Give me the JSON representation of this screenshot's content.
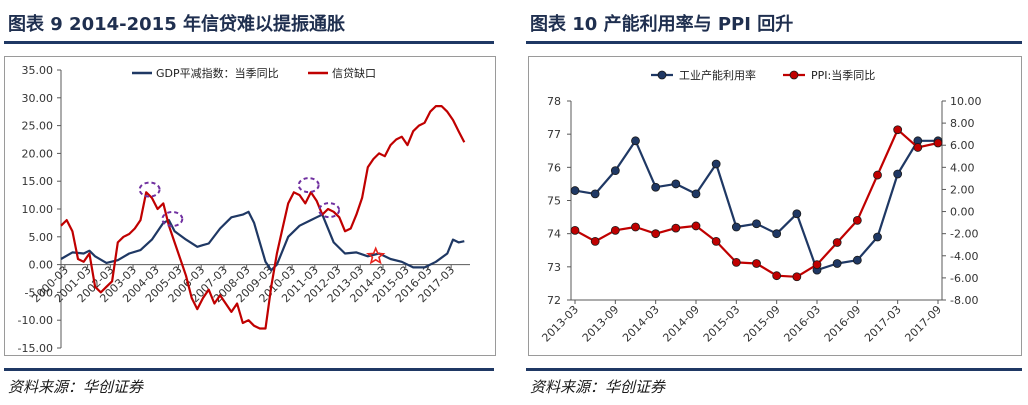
{
  "left": {
    "title": "图表 9 2014-2015 年信贷难以提振通胀",
    "source": "资料来源：华创证券",
    "colors": {
      "gdp": "#1f3864",
      "credit": "#c00000",
      "highlight": "#7030a0",
      "star": "#e8241d"
    }
  },
  "right": {
    "title": "图表 10    产能利用率与 PPI 回升",
    "source": "资料来源：华创证券",
    "colors": {
      "util": "#1f3864",
      "ppi": "#c00000"
    }
  },
  "chart_data": [
    {
      "type": "line",
      "legend_position": "top",
      "grid": false,
      "ylim": [
        -15,
        35
      ],
      "yticks": [
        "35.00",
        "30.00",
        "25.00",
        "20.00",
        "15.00",
        "10.00",
        "5.00",
        "0.00",
        "-5.00",
        "-10.00",
        "-15.00"
      ],
      "x_range": [
        2000.0,
        2018.0
      ],
      "xtick_labels": [
        "2000-03",
        "2001-03",
        "2002-03",
        "2003-03",
        "2004-03",
        "2005-03",
        "2006-03",
        "2007-03",
        "2008-03",
        "2009-03",
        "2010-03",
        "2011-03",
        "2012-03",
        "2013-03",
        "2014-03",
        "2015-03",
        "2016-03",
        "2017-03"
      ],
      "series": [
        {
          "name": "GDP平减指数：当季同比",
          "x": [
            2000.0,
            2000.5,
            2001.0,
            2001.25,
            2001.5,
            2002.0,
            2002.5,
            2003.0,
            2003.5,
            2004.0,
            2004.5,
            2004.75,
            2005.0,
            2005.5,
            2006.0,
            2006.25,
            2006.5,
            2007.0,
            2007.5,
            2008.0,
            2008.25,
            2008.5,
            2008.75,
            2009.0,
            2009.25,
            2009.5,
            2010.0,
            2010.5,
            2011.0,
            2011.25,
            2011.5,
            2012.0,
            2012.5,
            2013.0,
            2013.5,
            2014.0,
            2014.5,
            2015.0,
            2015.5,
            2016.0,
            2016.5,
            2017.0,
            2017.25,
            2017.5,
            2017.75
          ],
          "y": [
            1.0,
            2.2,
            2.0,
            2.5,
            1.5,
            0.3,
            0.8,
            2.0,
            2.6,
            4.5,
            7.5,
            8.0,
            6.0,
            4.5,
            3.2,
            3.5,
            3.8,
            6.5,
            8.5,
            9.0,
            9.5,
            7.5,
            4.0,
            0.5,
            -1.0,
            0.0,
            5.0,
            7.0,
            8.0,
            8.5,
            9.0,
            4.0,
            2.0,
            2.2,
            1.5,
            2.0,
            1.0,
            0.5,
            -0.5,
            -0.5,
            0.5,
            2.0,
            4.5,
            4.0,
            4.2
          ]
        },
        {
          "name": "信贷缺口",
          "x": [
            2000.0,
            2000.25,
            2000.5,
            2000.75,
            2001.0,
            2001.25,
            2001.5,
            2001.75,
            2002.0,
            2002.25,
            2002.5,
            2002.75,
            2003.0,
            2003.25,
            2003.5,
            2003.75,
            2004.0,
            2004.25,
            2004.5,
            2004.75,
            2005.0,
            2005.25,
            2005.5,
            2005.75,
            2006.0,
            2006.25,
            2006.5,
            2006.75,
            2007.0,
            2007.25,
            2007.5,
            2007.75,
            2008.0,
            2008.25,
            2008.5,
            2008.75,
            2009.0,
            2009.25,
            2009.5,
            2009.75,
            2010.0,
            2010.25,
            2010.5,
            2010.75,
            2011.0,
            2011.25,
            2011.5,
            2011.75,
            2012.0,
            2012.25,
            2012.5,
            2012.75,
            2013.0,
            2013.25,
            2013.5,
            2013.75,
            2014.0,
            2014.25,
            2014.5,
            2014.75,
            2015.0,
            2015.25,
            2015.5,
            2015.75,
            2016.0,
            2016.25,
            2016.5,
            2016.75,
            2017.0,
            2017.25,
            2017.5,
            2017.75
          ],
          "y": [
            7.0,
            8.0,
            6.0,
            1.0,
            0.5,
            2.0,
            -4.0,
            -5.0,
            -4.0,
            -3.0,
            4.0,
            5.0,
            5.5,
            6.5,
            8.0,
            13.0,
            12.0,
            10.0,
            11.0,
            7.0,
            4.0,
            1.0,
            -2.0,
            -6.0,
            -8.0,
            -6.0,
            -4.5,
            -7.0,
            -5.5,
            -7.0,
            -8.5,
            -7.0,
            -10.5,
            -10.0,
            -11.0,
            -11.5,
            -11.5,
            -4.0,
            2.0,
            6.5,
            11.0,
            13.0,
            12.5,
            11.0,
            13.0,
            11.5,
            9.0,
            10.0,
            9.5,
            8.5,
            6.0,
            6.5,
            9.0,
            12.0,
            17.5,
            19.0,
            20.0,
            19.5,
            21.5,
            22.5,
            23.0,
            21.5,
            24.0,
            25.0,
            25.5,
            27.5,
            28.5,
            28.5,
            27.5,
            26.0,
            24.0,
            22.0
          ]
        }
      ],
      "annotations": [
        {
          "type": "dashed-ellipse",
          "x": 2003.9,
          "y": 13.5
        },
        {
          "type": "dashed-ellipse",
          "x": 2004.9,
          "y": 8.2
        },
        {
          "type": "dashed-ellipse",
          "x": 2010.9,
          "y": 14.3
        },
        {
          "type": "dashed-ellipse",
          "x": 2011.8,
          "y": 9.8
        },
        {
          "type": "star",
          "x": 2013.85,
          "y": 1.5
        }
      ]
    },
    {
      "type": "line",
      "legend_position": "top",
      "grid": false,
      "categories": [
        "2013-03",
        "2013-06",
        "2013-09",
        "2013-12",
        "2014-03",
        "2014-06",
        "2014-09",
        "2014-12",
        "2015-03",
        "2015-06",
        "2015-09",
        "2015-12",
        "2016-03",
        "2016-06",
        "2016-09",
        "2016-12",
        "2017-03",
        "2017-06",
        "2017-09"
      ],
      "xtick_labels": [
        "2013-03",
        "2013-09",
        "2014-03",
        "2014-09",
        "2015-03",
        "2015-09",
        "2016-03",
        "2016-09",
        "2017-03",
        "2017-09"
      ],
      "y_left": {
        "label": "",
        "lim": [
          72,
          78
        ],
        "ticks": [
          "78",
          "77",
          "76",
          "75",
          "74",
          "73",
          "72"
        ]
      },
      "y_right": {
        "label": "",
        "lim": [
          -8,
          10
        ],
        "ticks": [
          "10.00",
          "8.00",
          "6.00",
          "4.00",
          "2.00",
          "0.00",
          "-2.00",
          "-4.00",
          "-6.00",
          "-8.00"
        ]
      },
      "series": [
        {
          "name": "工业产能利用率",
          "axis": "left",
          "x": [
            "2013-03",
            "2013-06",
            "2013-09",
            "2013-12",
            "2014-03",
            "2014-06",
            "2014-09",
            "2014-12",
            "2015-03",
            "2015-06",
            "2015-09",
            "2015-12",
            "2016-03",
            "2016-06",
            "2016-09",
            "2016-12",
            "2017-03",
            "2017-06",
            "2017-09"
          ],
          "values": [
            75.3,
            75.2,
            75.9,
            76.8,
            75.4,
            75.5,
            75.2,
            76.1,
            74.2,
            74.3,
            74.0,
            74.6,
            72.9,
            73.1,
            73.2,
            73.9,
            75.8,
            76.8,
            76.8
          ]
        },
        {
          "name": "PPI:当季同比",
          "axis": "right",
          "x": [
            "2013-03",
            "2013-06",
            "2013-09",
            "2013-12",
            "2014-03",
            "2014-06",
            "2014-09",
            "2014-12",
            "2015-03",
            "2015-06",
            "2015-09",
            "2015-12",
            "2016-03",
            "2016-06",
            "2016-09",
            "2016-12",
            "2017-03",
            "2017-06",
            "2017-09"
          ],
          "values": [
            -1.7,
            -2.7,
            -1.7,
            -1.4,
            -2.0,
            -1.5,
            -1.3,
            -2.7,
            -4.6,
            -4.7,
            -5.8,
            -5.9,
            -4.8,
            -2.8,
            -0.8,
            3.3,
            7.4,
            5.8,
            6.2
          ]
        }
      ]
    }
  ]
}
